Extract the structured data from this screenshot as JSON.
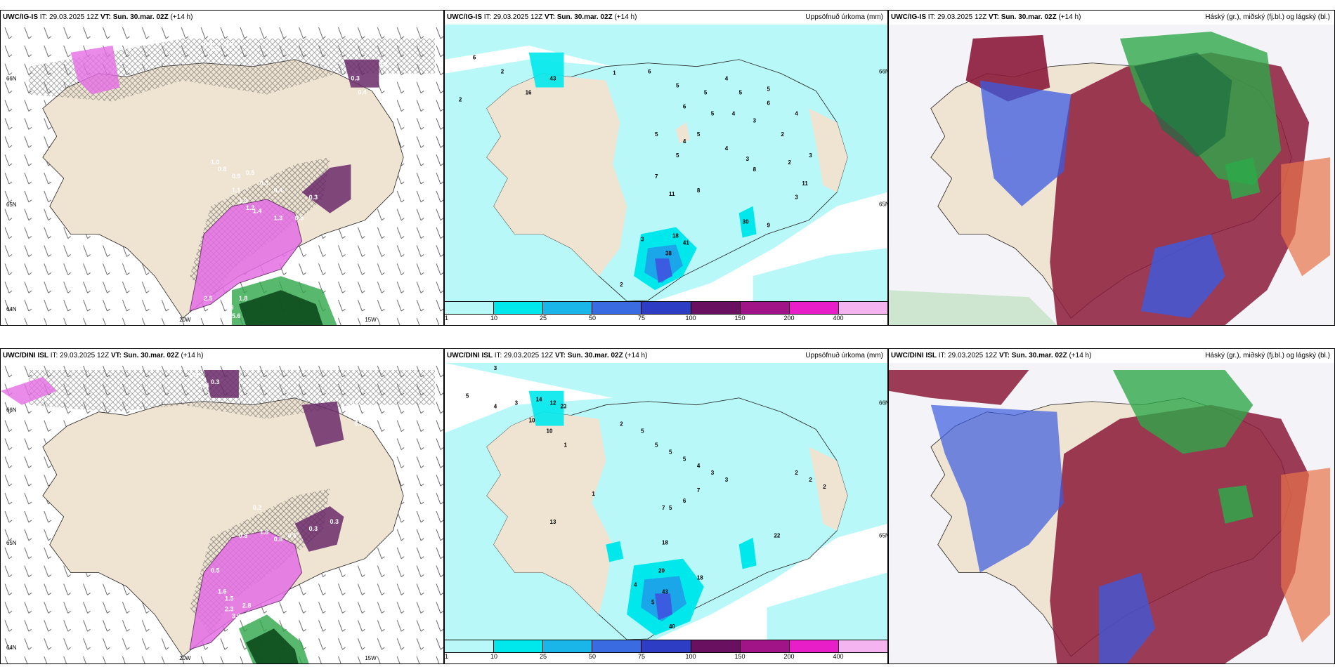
{
  "colors": {
    "land": "#efe3d2",
    "sea": "#ffffff",
    "cyan_light": "#b8f8f8",
    "cyan": "#00e8ec",
    "blue_mid": "#1aa6e8",
    "blue": "#3b5be0",
    "purple_dark": "#6a2a6a",
    "magenta": "#b31ab3",
    "pink": "#e81ec8",
    "pink_light": "#f4b4f0",
    "dark_red": "#8b1a3a",
    "green": "#2ea84a",
    "violet": "#e56ee5"
  },
  "panels": [
    {
      "id": "top-left",
      "model": "UWC/IG-IS",
      "it_label": "IT:",
      "it_value": "29.03.2025 12Z",
      "vt_label": "VT:",
      "vt_value": "Sun. 30.mar. 02Z",
      "lead": "(+14 h)",
      "right_title": "",
      "lat_labels": [
        "66N",
        "65N",
        "64N"
      ],
      "lon_labels": [
        "20W",
        "15W"
      ],
      "precip_values": [
        "0.4",
        "0.4",
        "0.3",
        "0.2",
        "0.3",
        "0.4",
        "1.0",
        "0.8",
        "0.9",
        "0.5",
        "0.3",
        "0.4",
        "1.1",
        "1.0",
        "1.2",
        "1.4",
        "1.3",
        "0.5",
        "0.3",
        "2.5",
        "3.5",
        "2.9",
        "1.8",
        "5.6"
      ]
    },
    {
      "id": "top-middle",
      "model": "UWC/IG-IS",
      "it_label": "IT:",
      "it_value": "29.03.2025 12Z",
      "vt_label": "VT:",
      "vt_value": "Sun. 30.mar. 02Z",
      "lead": "(+14 h)",
      "right_title": "Uppsöfnuð úrkoma (mm)",
      "lat_labels": [
        "66N",
        "65N"
      ],
      "lon_labels": [],
      "precip_values": [
        "6",
        "2",
        "2",
        "16",
        "43",
        "6",
        "1",
        "5",
        "5",
        "4",
        "5",
        "5",
        "6",
        "6",
        "5",
        "4",
        "3",
        "4",
        "2",
        "5",
        "4",
        "5",
        "4",
        "3",
        "2",
        "3",
        "5",
        "7",
        "11",
        "8",
        "8",
        "11",
        "3",
        "3",
        "18",
        "38",
        "41",
        "30",
        "9",
        "2"
      ]
    },
    {
      "id": "top-right",
      "model": "UWC/IG-IS",
      "it_label": "IT:",
      "it_value": "29.03.2025 12Z",
      "vt_label": "VT:",
      "vt_value": "Sun. 30.mar. 02Z",
      "lead": "(+14 h)",
      "right_title": "Háský (gr.), miðský (fj.bl.) og lágský (bl.)",
      "lat_labels": [],
      "lon_labels": [],
      "precip_values": []
    },
    {
      "id": "bottom-left",
      "model": "UWC/DINI ISL",
      "it_label": "IT:",
      "it_value": "29.03.2025 12Z",
      "vt_label": "VT:",
      "vt_value": "Sun. 30.mar. 02Z",
      "lead": "(+14 h)",
      "right_title": "",
      "lat_labels": [
        "66N",
        "65N",
        "64N"
      ],
      "lon_labels": [
        "20W",
        "15W"
      ],
      "precip_values": [
        "0.3",
        "0.4",
        "0.3",
        "0.2",
        "0.9",
        "0.2",
        "0.2",
        "0.8",
        "1.8",
        "0.8",
        "0.5",
        "0.3",
        "0.3",
        "0.5",
        "1.6",
        "1.5",
        "2.3",
        "2.8",
        "3.6"
      ]
    },
    {
      "id": "bottom-middle",
      "model": "UWC/DINI ISL",
      "it_label": "IT:",
      "it_value": "29.03.2025 12Z",
      "vt_label": "VT:",
      "vt_value": "Sun. 30.mar. 02Z",
      "lead": "(+14 h)",
      "right_title": "Uppsöfnuð úrkoma (mm)",
      "lat_labels": [
        "66N",
        "65N"
      ],
      "lon_labels": [],
      "precip_values": [
        "3",
        "5",
        "4",
        "3",
        "14",
        "12",
        "23",
        "10",
        "10",
        "2",
        "5",
        "1",
        "5",
        "5",
        "5",
        "4",
        "3",
        "3",
        "7",
        "6",
        "5",
        "2",
        "2",
        "2",
        "13",
        "7",
        "18",
        "20",
        "43",
        "18",
        "22",
        "4",
        "5",
        "40",
        "1"
      ]
    },
    {
      "id": "bottom-right",
      "model": "UWC/DINI ISL",
      "it_label": "IT:",
      "it_value": "29.03.2025 12Z",
      "vt_label": "VT:",
      "vt_value": "Sun. 30.mar. 02Z",
      "lead": "(+14 h)",
      "right_title": "Háský (gr.), miðský (fj.bl.) og lágský (bl.)",
      "lat_labels": [],
      "lon_labels": [],
      "precip_values": []
    }
  ],
  "legend": {
    "labels": [
      "1",
      "10",
      "25",
      "50",
      "75",
      "100",
      "150",
      "200",
      "400"
    ],
    "colors": [
      "#b8f8f8",
      "#00e8ec",
      "#1ab6ea",
      "#3b6be0",
      "#2d3ec4",
      "#6a1060",
      "#a01488",
      "#e81ec8",
      "#f4b4f0"
    ]
  }
}
